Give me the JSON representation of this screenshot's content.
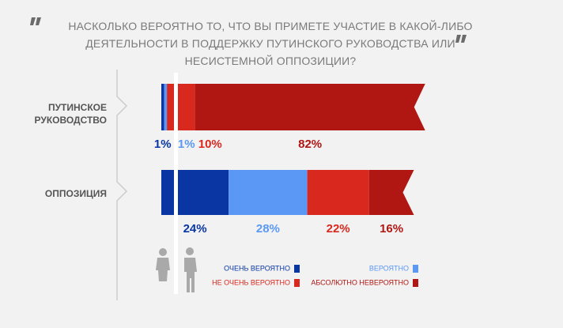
{
  "chart_data": {
    "type": "stacked-bar",
    "title": "НАСКОЛЬКО ВЕРОЯТНО ТО, ЧТО ВЫ ПРИМЕТЕ УЧАСТИЕ В КАКОЙ-ЛИБО ДЕЯТЕЛЬНОСТИ В ПОДДЕРЖКУ ПУТИНСКОГО РУКОВОДСТВА ИЛИ НЕСИСТЕМНОЙ ОППОЗИЦИИ?",
    "categories": [
      "ПУТИНСКОЕ РУКОВОДСТВО",
      "ОППОЗИЦИЯ"
    ],
    "series": [
      {
        "name": "ОЧЕНЬ ВЕРОЯТНО",
        "color": "#0a36a3",
        "values": [
          1,
          24
        ],
        "value_labels": [
          "1%",
          "24%"
        ]
      },
      {
        "name": "ВЕРОЯТНО",
        "color": "#5b98f5",
        "values": [
          1,
          28
        ],
        "value_labels": [
          "1%",
          "28%"
        ]
      },
      {
        "name": "НЕ ОЧЕНЬ ВЕРОЯТНО",
        "color": "#d9291f",
        "values": [
          10,
          22
        ],
        "value_labels": [
          "10%",
          "22%"
        ]
      },
      {
        "name": "АБСОЛЮТНО НЕВЕРОЯТНО",
        "color": "#b01713",
        "values": [
          82,
          16
        ],
        "value_labels": [
          "82%",
          "16%"
        ]
      }
    ]
  }
}
